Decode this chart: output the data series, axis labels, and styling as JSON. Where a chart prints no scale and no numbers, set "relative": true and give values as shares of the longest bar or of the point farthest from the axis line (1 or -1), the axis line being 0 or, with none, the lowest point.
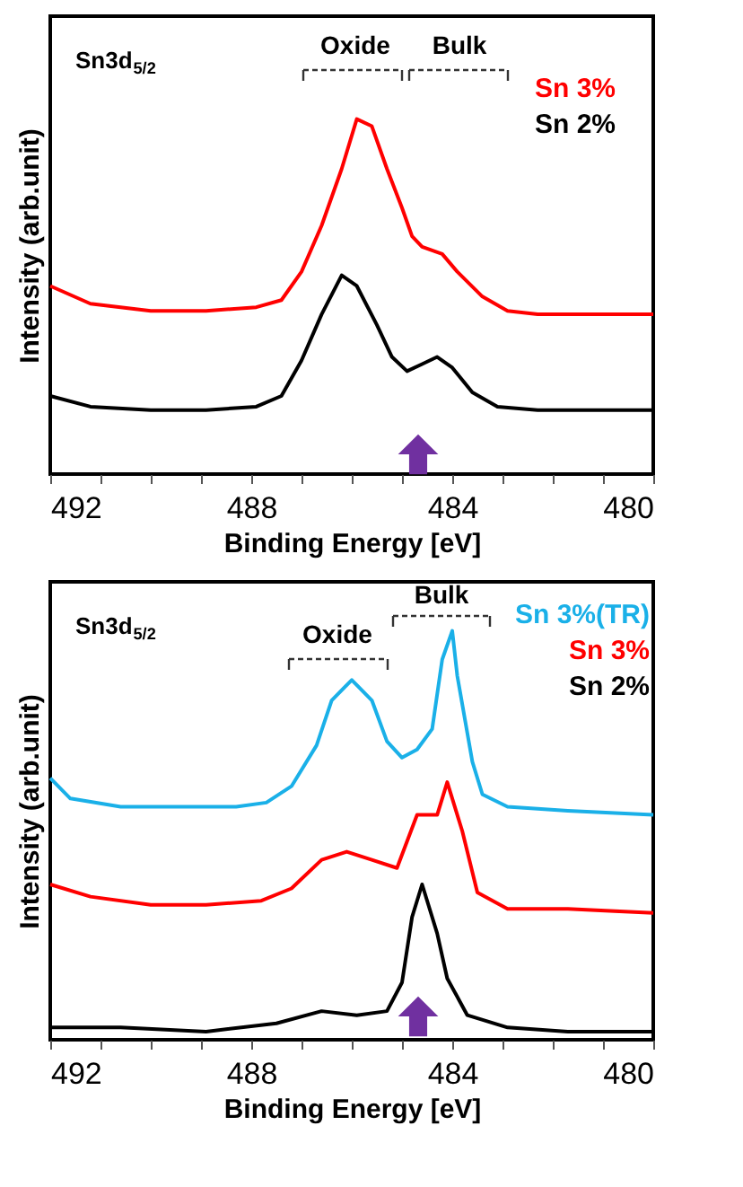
{
  "chart_data": [
    {
      "type": "line",
      "relative": true,
      "xlabel": "Binding Energy [eV]",
      "ylabel": "Intensity (arb.unit)",
      "xlim": [
        492,
        480
      ],
      "xticks": [
        492,
        {
          "value": 491,
          "label": null
        },
        {
          "value": 490,
          "label": null
        },
        {
          "value": 489,
          "label": null
        },
        488,
        {
          "value": 487,
          "label": null
        },
        {
          "value": 486,
          "label": null
        },
        {
          "value": 485,
          "label": null
        },
        484,
        {
          "value": 483,
          "label": null
        },
        {
          "value": 482,
          "label": null
        },
        {
          "value": 481,
          "label": null
        },
        480
      ],
      "legend": "top right",
      "annotations": [
        "Sn3d$_{5/2}$",
        "Oxide",
        "Bulk"
      ],
      "series": [
        {
          "name": "Sn 3%",
          "color": "#ff0000",
          "x": [
            492,
            491.2,
            490.0,
            488.9,
            487.9,
            487.4,
            487.0,
            486.6,
            486.2,
            485.9,
            485.6,
            485.3,
            485.0,
            484.8,
            484.6,
            484.2,
            483.9,
            483.4,
            482.9,
            482.3,
            481.1,
            480
          ],
          "values": [
            0.53,
            0.48,
            0.46,
            0.46,
            0.47,
            0.49,
            0.57,
            0.7,
            0.86,
            1.0,
            0.98,
            0.86,
            0.75,
            0.67,
            0.64,
            0.62,
            0.57,
            0.5,
            0.46,
            0.45,
            0.45,
            0.45
          ]
        },
        {
          "name": "Sn 2%",
          "color": "#000000",
          "x": [
            492,
            491.2,
            490.0,
            488.9,
            487.9,
            487.4,
            487.0,
            486.6,
            486.2,
            485.9,
            485.5,
            485.2,
            484.9,
            484.6,
            484.3,
            484.0,
            483.6,
            483.1,
            482.3,
            481.1,
            480
          ],
          "values": [
            0.22,
            0.19,
            0.18,
            0.18,
            0.19,
            0.22,
            0.32,
            0.45,
            0.56,
            0.53,
            0.42,
            0.33,
            0.29,
            0.31,
            0.33,
            0.3,
            0.23,
            0.19,
            0.18,
            0.18,
            0.18
          ]
        }
      ]
    },
    {
      "type": "line",
      "relative": true,
      "xlabel": "Binding Energy [eV]",
      "ylabel": "Intensity (arb.unit)",
      "xlim": [
        492,
        480
      ],
      "xticks": [
        492,
        {
          "value": 491,
          "label": null
        },
        {
          "value": 490,
          "label": null
        },
        {
          "value": 489,
          "label": null
        },
        488,
        {
          "value": 487,
          "label": null
        },
        {
          "value": 486,
          "label": null
        },
        {
          "value": 485,
          "label": null
        },
        484,
        {
          "value": 483,
          "label": null
        },
        {
          "value": 482,
          "label": null
        },
        {
          "value": 481,
          "label": null
        },
        480
      ],
      "legend": "top right",
      "annotations": [
        "Sn3d$_{5/2}$",
        "Oxide",
        "Bulk"
      ],
      "series": [
        {
          "name": "Sn 3%(TR)",
          "color": "#1ab0e8",
          "x": [
            492,
            491.6,
            490.6,
            489.4,
            488.3,
            487.7,
            487.2,
            486.7,
            486.4,
            486.0,
            485.6,
            485.3,
            485.0,
            484.7,
            484.4,
            484.2,
            484.0,
            483.9,
            483.6,
            483.4,
            482.9,
            481.7,
            480
          ],
          "values": [
            0.64,
            0.59,
            0.57,
            0.57,
            0.57,
            0.58,
            0.62,
            0.72,
            0.83,
            0.88,
            0.83,
            0.73,
            0.69,
            0.71,
            0.76,
            0.93,
            1.0,
            0.89,
            0.68,
            0.6,
            0.57,
            0.56,
            0.55
          ]
        },
        {
          "name": "Sn 3%",
          "color": "#ff0000",
          "x": [
            492,
            491.2,
            490.0,
            488.9,
            487.8,
            487.2,
            486.6,
            486.1,
            485.6,
            485.1,
            484.7,
            484.3,
            484.1,
            483.8,
            483.5,
            482.9,
            481.7,
            480
          ],
          "values": [
            0.38,
            0.35,
            0.33,
            0.33,
            0.34,
            0.37,
            0.44,
            0.46,
            0.44,
            0.42,
            0.55,
            0.55,
            0.63,
            0.51,
            0.36,
            0.32,
            0.32,
            0.31
          ]
        },
        {
          "name": "Sn 2%",
          "color": "#000000",
          "x": [
            492,
            490.6,
            488.9,
            487.5,
            486.6,
            485.9,
            485.3,
            485.0,
            484.8,
            484.6,
            484.3,
            484.1,
            483.7,
            482.9,
            481.7,
            480
          ],
          "values": [
            0.03,
            0.03,
            0.02,
            0.04,
            0.07,
            0.06,
            0.07,
            0.14,
            0.3,
            0.38,
            0.26,
            0.15,
            0.06,
            0.03,
            0.02,
            0.02
          ]
        }
      ]
    }
  ]
}
